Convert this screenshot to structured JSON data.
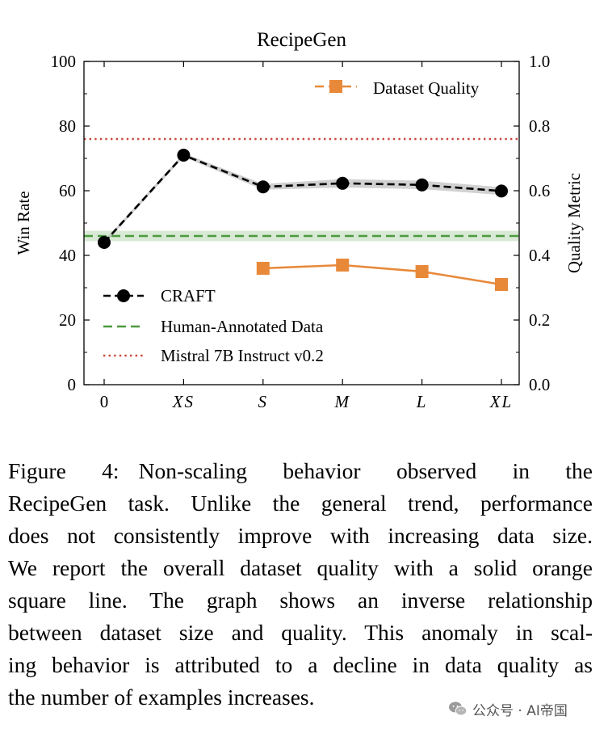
{
  "chart_data": {
    "type": "line",
    "title": "RecipeGen",
    "xlabel": "",
    "ylabel": "Win Rate",
    "ylabel_right": "Quality Metric",
    "categories": [
      "0",
      "XS",
      "S",
      "M",
      "L",
      "XL"
    ],
    "ylim": [
      0,
      100
    ],
    "ylim_right": [
      0.0,
      1.0
    ],
    "yticks": [
      "0",
      "20",
      "40",
      "60",
      "80",
      "100"
    ],
    "yticks_right": [
      "0.0",
      "0.2",
      "0.4",
      "0.6",
      "0.8",
      "1.0"
    ],
    "series": [
      {
        "name": "CRAFT",
        "axis": "left",
        "style": "dashed-circle",
        "color": "#000000",
        "values": [
          44.0,
          71.0,
          61.2,
          62.3,
          61.8,
          59.9
        ],
        "band": [
          0.6,
          0.6,
          0.9,
          1.3,
          1.3,
          1.2
        ]
      },
      {
        "name": "Dataset Quality",
        "axis": "right",
        "style": "solid-square",
        "color": "#e8893a",
        "values": [
          null,
          null,
          0.36,
          0.37,
          0.35,
          0.31
        ]
      }
    ],
    "reference_lines": [
      {
        "name": "Human-Annotated Data",
        "axis": "left",
        "value": 46.0,
        "band": 1.6,
        "style": "dashed",
        "color": "#4c9a3e"
      },
      {
        "name": "Mistral 7B Instruct v0.2",
        "axis": "left",
        "value": 76.0,
        "style": "dotted",
        "color": "#c9483b"
      }
    ],
    "legend_main": [
      "CRAFT",
      "Human-Annotated Data",
      "Mistral 7B Instruct v0.2"
    ],
    "legend_main_position": "lower-left",
    "legend_right": [
      "Dataset Quality"
    ],
    "legend_right_position": "upper-right",
    "grid": false
  },
  "caption": {
    "label": "Figure 4:",
    "lines": [
      "Non-scaling behavior observed in the",
      "RecipeGen task. Unlike the general trend, performance",
      "does not consistently improve with increasing data size.",
      "We report the overall dataset quality with a solid orange",
      "square line.  The graph shows an inverse relationship",
      "between dataset size and quality. This anomaly in scal-",
      "ing behavior is attributed to a decline in data quality as",
      "the number of examples increases."
    ]
  },
  "watermark": {
    "text": "公众号 · AI帝国",
    "icon": "wechat-icon"
  }
}
